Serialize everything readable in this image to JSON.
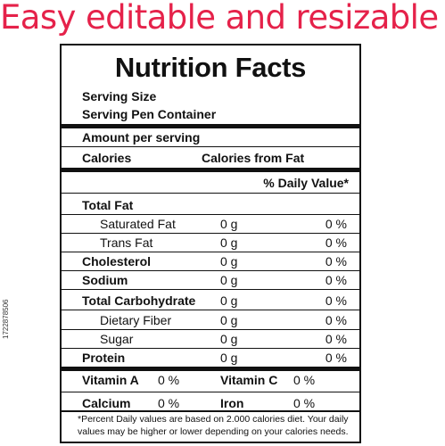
{
  "banner": "Easy editable and resizable",
  "stock_id": "1722878506",
  "label": {
    "title": "Nutrition Facts",
    "serving_size": "Serving Size",
    "serving_per_container": "Serving Pen Container",
    "amount_per_serving": "Amount per serving",
    "calories": "Calories",
    "calories_from_fat": "Calories from Fat",
    "daily_value_header": "% Daily Value*",
    "nutrients": [
      {
        "name": "Total Fat",
        "amount": "",
        "dv": ""
      },
      {
        "name": "Saturated Fat",
        "amount": "0 g",
        "dv": "0 %"
      },
      {
        "name": "Trans Fat",
        "amount": "0 g",
        "dv": "0 %"
      },
      {
        "name": "Cholesterol",
        "amount": "0 g",
        "dv": "0 %"
      },
      {
        "name": "Sodium",
        "amount": "0 g",
        "dv": "0 %"
      },
      {
        "name": "Total Carbohydrate",
        "amount": "0 g",
        "dv": "0 %"
      },
      {
        "name": "Dietary Fiber",
        "amount": "0 g",
        "dv": "0 %"
      },
      {
        "name": "Sugar",
        "amount": "0 g",
        "dv": "0 %"
      },
      {
        "name": "Protein",
        "amount": "0 g",
        "dv": "0 %"
      }
    ],
    "vitamins": [
      {
        "name": "Vitamin A",
        "dv": "0 %"
      },
      {
        "name": "Vitamin C",
        "dv": "0 %"
      },
      {
        "name": "Calcium",
        "dv": "0 %"
      },
      {
        "name": "Iron",
        "dv": "0 %"
      }
    ],
    "footnote_line1": "*Percent Daily values are based on 2.000 calories diet. Your daily",
    "footnote_line2": "values may be higher or lower depending on your calories needs."
  },
  "colors": {
    "banner": "#e5224a",
    "border": "#111111"
  }
}
